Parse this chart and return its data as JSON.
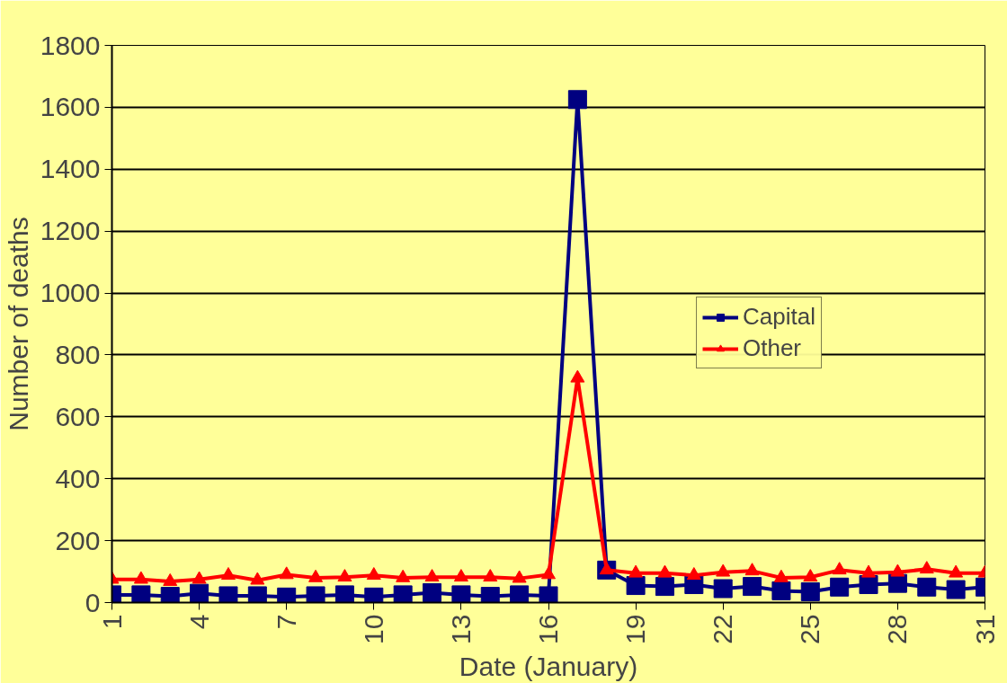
{
  "chart_data": {
    "type": "line",
    "xlabel": "Date (January)",
    "ylabel": "Number of deaths",
    "x": [
      1,
      2,
      3,
      4,
      5,
      6,
      7,
      8,
      9,
      10,
      11,
      12,
      13,
      14,
      15,
      16,
      17,
      18,
      19,
      20,
      21,
      22,
      23,
      24,
      25,
      26,
      27,
      28,
      29,
      30,
      31
    ],
    "series": [
      {
        "name": "Capital",
        "color": "#000080",
        "marker": "square",
        "values": [
          25,
          25,
          20,
          30,
          22,
          22,
          18,
          22,
          25,
          18,
          25,
          32,
          25,
          20,
          25,
          22,
          1625,
          105,
          55,
          52,
          58,
          45,
          52,
          38,
          35,
          50,
          58,
          62,
          50,
          42,
          50
        ]
      },
      {
        "name": "Other",
        "color": "#ff0000",
        "marker": "triangle",
        "values": [
          75,
          75,
          68,
          75,
          88,
          72,
          90,
          80,
          82,
          88,
          80,
          82,
          82,
          82,
          78,
          90,
          725,
          105,
          95,
          95,
          88,
          98,
          102,
          80,
          82,
          105,
          95,
          98,
          108,
          95,
          95
        ]
      }
    ],
    "xlim": [
      1,
      31
    ],
    "xticks": [
      1,
      4,
      7,
      10,
      13,
      16,
      19,
      22,
      25,
      28,
      31
    ],
    "ylim": [
      0,
      1800
    ],
    "yticks": [
      0,
      200,
      400,
      600,
      800,
      1000,
      1200,
      1400,
      1600,
      1800
    ],
    "grid": "y",
    "legend": "right",
    "line_style": "solid"
  }
}
